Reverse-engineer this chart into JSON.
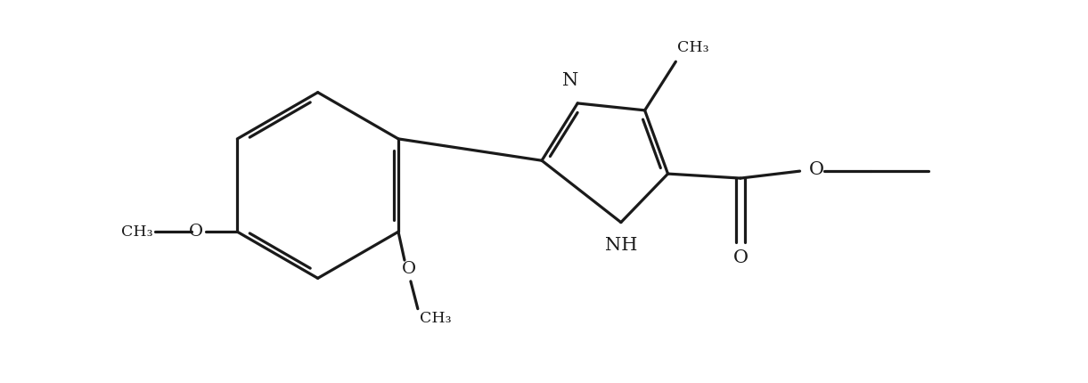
{
  "background_color": "#ffffff",
  "line_color": "#1a1a1a",
  "line_width": 2.3,
  "dbo": 0.055,
  "font_size": 14,
  "figsize": [
    12.21,
    4.3
  ],
  "xlim": [
    0,
    12.21
  ],
  "ylim": [
    0,
    4.3
  ]
}
